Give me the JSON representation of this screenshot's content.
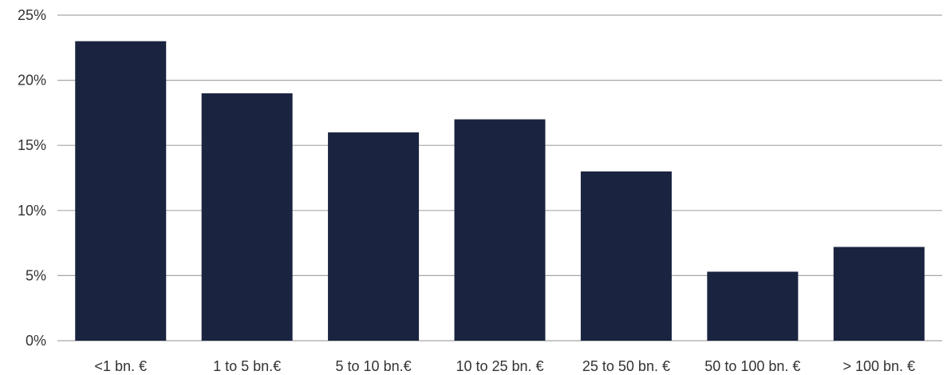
{
  "chart_data": {
    "type": "bar",
    "categories": [
      "<1 bn. €",
      "1 to 5 bn.€",
      "5 to 10 bn.€",
      "10 to 25 bn. €",
      "25 to 50 bn. €",
      "50 to 100 bn. €",
      "> 100 bn. €"
    ],
    "values": [
      23,
      19,
      16,
      17,
      13,
      5.3,
      7.2
    ],
    "title": "",
    "xlabel": "",
    "ylabel": "",
    "ylim": [
      0,
      25
    ],
    "yticks": [
      0,
      5,
      10,
      15,
      20,
      25
    ],
    "ytick_labels": [
      "0%",
      "5%",
      "10%",
      "15%",
      "20%",
      "25%"
    ],
    "grid": true,
    "legend": "none",
    "colors": {
      "bar": "#1a2440",
      "grid": "#a6a6a6"
    }
  }
}
